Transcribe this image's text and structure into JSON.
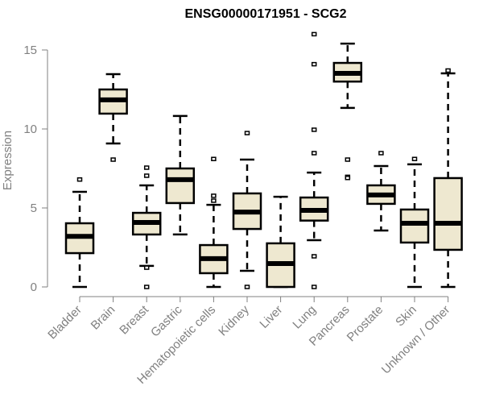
{
  "chart_data": {
    "type": "boxplot",
    "title": "ENSG00000171951 - SCG2",
    "xlabel": "",
    "ylabel": "Expression",
    "ylim": [
      0,
      15.4
    ],
    "yticks": [
      0,
      5,
      10,
      15
    ],
    "grid": false,
    "legend": "none",
    "box_color": "#EEE8D0",
    "categories": [
      "Bladder",
      "Brain",
      "Breast",
      "Gastric",
      "Hematopoietic cells",
      "Kidney",
      "Liver",
      "Lung",
      "Pancreas",
      "Prostate",
      "Skin",
      "Unknown / Other"
    ],
    "series": [
      {
        "name": "Bladder",
        "whisker_low": 0,
        "q1": 2.14,
        "median": 3.2,
        "q3": 4.03,
        "whisker_high": 6.02,
        "outliers": [
          6.8
        ]
      },
      {
        "name": "Brain",
        "whisker_low": 9.08,
        "q1": 10.97,
        "median": 11.84,
        "q3": 12.5,
        "whisker_high": 13.47,
        "outliers": [
          8.06
        ]
      },
      {
        "name": "Breast",
        "whisker_low": 1.33,
        "q1": 3.32,
        "median": 4.08,
        "q3": 4.69,
        "whisker_high": 6.43,
        "outliers": [
          7.55,
          7.04,
          1.22,
          0
        ]
      },
      {
        "name": "Gastric",
        "whisker_low": 3.32,
        "q1": 5.31,
        "median": 6.79,
        "q3": 7.5,
        "whisker_high": 10.82,
        "outliers": []
      },
      {
        "name": "Hematopoietic cells",
        "whisker_low": 0,
        "q1": 0.87,
        "median": 1.79,
        "q3": 2.65,
        "whisker_high": 5.2,
        "outliers": [
          8.1,
          5.77,
          5.46
        ]
      },
      {
        "name": "Kidney",
        "whisker_low": 1.02,
        "q1": 3.67,
        "median": 4.74,
        "q3": 5.92,
        "whisker_high": 8.06,
        "outliers": [
          9.74,
          0
        ]
      },
      {
        "name": "Liver",
        "whisker_low": 0,
        "q1": 0,
        "median": 1.48,
        "q3": 2.76,
        "whisker_high": 5.71,
        "outliers": []
      },
      {
        "name": "Lung",
        "whisker_low": 2.96,
        "q1": 4.2,
        "median": 4.85,
        "q3": 5.66,
        "whisker_high": 7.24,
        "outliers": [
          16.0,
          14.1,
          9.95,
          8.47,
          1.94,
          0
        ]
      },
      {
        "name": "Pancreas",
        "whisker_low": 11.33,
        "q1": 13.0,
        "median": 13.52,
        "q3": 14.18,
        "whisker_high": 15.4,
        "outliers": [
          8.06,
          6.97,
          6.9
        ]
      },
      {
        "name": "Prostate",
        "whisker_low": 3.57,
        "q1": 5.26,
        "median": 5.82,
        "q3": 6.43,
        "whisker_high": 7.65,
        "outliers": [
          8.47
        ]
      },
      {
        "name": "Skin",
        "whisker_low": 0,
        "q1": 2.81,
        "median": 4.03,
        "q3": 4.9,
        "whisker_high": 7.76,
        "outliers": [
          8.1
        ]
      },
      {
        "name": "Unknown / Other",
        "whisker_low": 0,
        "q1": 2.35,
        "median": 4.03,
        "q3": 6.89,
        "whisker_high": 13.52,
        "outliers": [
          13.7
        ]
      }
    ]
  }
}
